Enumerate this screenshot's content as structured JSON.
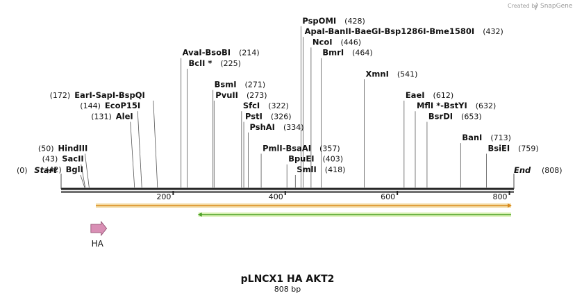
{
  "map": {
    "title": "pLNCX1 HA AKT2",
    "length_label": "808 bp",
    "length": 808,
    "start_label": "Start",
    "start_pos": "(0)",
    "end_label": "End",
    "end_pos": "(808)",
    "credit_prefix": "Created by",
    "credit_brand": "SnapGene",
    "ticks": [
      {
        "value": 200,
        "label": "200"
      },
      {
        "value": 400,
        "label": "400"
      },
      {
        "value": 600,
        "label": "600"
      },
      {
        "value": 800,
        "label": "800"
      }
    ],
    "sites": [
      {
        "names": [
          "BglI"
        ],
        "pos": 42,
        "pos_label": "(42)",
        "side": "left",
        "row": 0
      },
      {
        "names": [
          "SacII"
        ],
        "pos": 43,
        "pos_label": "(43)",
        "side": "left",
        "row": 1
      },
      {
        "names": [
          "HindIII"
        ],
        "pos": 50,
        "pos_label": "(50)",
        "side": "left",
        "row": 2
      },
      {
        "names": [
          "AleI"
        ],
        "pos": 131,
        "pos_label": "(131)",
        "side": "left",
        "row": 5
      },
      {
        "names": [
          "EcoP15I"
        ],
        "pos": 144,
        "pos_label": "(144)",
        "side": "left",
        "row": 6
      },
      {
        "names": [
          "EarI",
          "SapI",
          "BspQI"
        ],
        "pos": 172,
        "pos_label": "(172)",
        "side": "left",
        "row": 7
      },
      {
        "names": [
          "AvaI",
          "BsoBI"
        ],
        "pos": 214,
        "pos_label": "(214)",
        "side": "right",
        "row": 11
      },
      {
        "names": [
          "BclI *"
        ],
        "pos": 225,
        "pos_label": "(225)",
        "side": "right",
        "row": 10
      },
      {
        "names": [
          "BsmI"
        ],
        "pos": 271,
        "pos_label": "(271)",
        "side": "right",
        "row": 8
      },
      {
        "names": [
          "PvuII"
        ],
        "pos": 273,
        "pos_label": "(273)",
        "side": "right",
        "row": 7
      },
      {
        "names": [
          "SfcI"
        ],
        "pos": 322,
        "pos_label": "(322)",
        "side": "right",
        "row": 6
      },
      {
        "names": [
          "PstI"
        ],
        "pos": 326,
        "pos_label": "(326)",
        "side": "right",
        "row": 5
      },
      {
        "names": [
          "PshAI"
        ],
        "pos": 334,
        "pos_label": "(334)",
        "side": "right",
        "row": 4
      },
      {
        "names": [
          "PmlI",
          "BsaAI"
        ],
        "pos": 357,
        "pos_label": "(357)",
        "side": "right",
        "row": 2
      },
      {
        "names": [
          "BpuEI"
        ],
        "pos": 403,
        "pos_label": "(403)",
        "side": "right",
        "row": 1
      },
      {
        "names": [
          "SmlI"
        ],
        "pos": 418,
        "pos_label": "(418)",
        "side": "right",
        "row": 0
      },
      {
        "names": [
          "PspOMI"
        ],
        "pos": 428,
        "pos_label": "(428)",
        "side": "right",
        "row": 14
      },
      {
        "names": [
          "ApaI",
          "BanII",
          "BaeGI",
          "Bsp1286I",
          "Bme1580I"
        ],
        "pos": 432,
        "pos_label": "(432)",
        "side": "right",
        "row": 13
      },
      {
        "names": [
          "NcoI"
        ],
        "pos": 446,
        "pos_label": "(446)",
        "side": "right",
        "row": 12
      },
      {
        "names": [
          "BmrI"
        ],
        "pos": 464,
        "pos_label": "(464)",
        "side": "right",
        "row": 11
      },
      {
        "names": [
          "XmnI"
        ],
        "pos": 541,
        "pos_label": "(541)",
        "side": "right",
        "row": 9
      },
      {
        "names": [
          "EaeI"
        ],
        "pos": 612,
        "pos_label": "(612)",
        "side": "right",
        "row": 7
      },
      {
        "names": [
          "MflI *",
          "BstYI"
        ],
        "pos": 632,
        "pos_label": "(632)",
        "side": "right",
        "row": 6
      },
      {
        "names": [
          "BsrDI"
        ],
        "pos": 653,
        "pos_label": "(653)",
        "side": "right",
        "row": 5
      },
      {
        "names": [
          "BanI"
        ],
        "pos": 713,
        "pos_label": "(713)",
        "side": "right",
        "row": 3
      },
      {
        "names": [
          "BsiEI"
        ],
        "pos": 759,
        "pos_label": "(759)",
        "side": "right",
        "row": 2
      }
    ],
    "features": [
      {
        "type": "orf",
        "start": 62,
        "end": 808,
        "direction": "forward",
        "fill": "#f2d9a0",
        "stroke": "#d98a1e"
      },
      {
        "type": "orf",
        "start": 245,
        "end": 808,
        "direction": "reverse",
        "fill": "#d6efb0",
        "stroke": "#4aa025"
      },
      {
        "type": "tag",
        "label": "HA",
        "start": 63,
        "end": 90,
        "direction": "forward",
        "fill": "#d98fb5",
        "stroke": "#8a4a6a"
      }
    ]
  }
}
